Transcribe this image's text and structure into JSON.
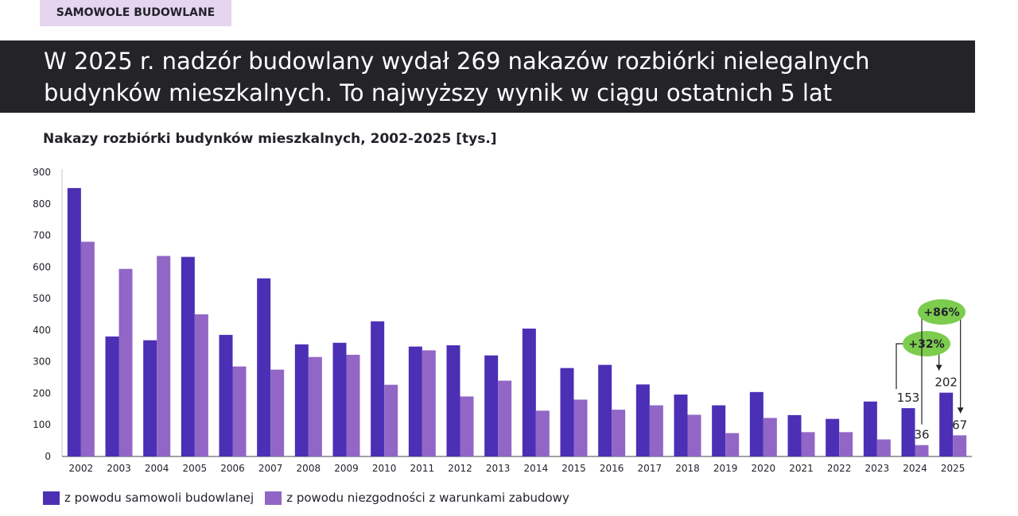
{
  "tag": "SAMOWOLE BUDOWLANE",
  "headline": "W 2025 r. nadzór budowlany wydał 269 nakazów rozbiórki nielegalnych budynków mieszkalnych. To najwyższy wynik w ciągu ostatnich 5 lat",
  "colors": {
    "series1": "#4b2fb5",
    "series2": "#9166c6",
    "badge": "#7ccc4e",
    "banner": "#242428",
    "tag_bg": "#e5d5ef"
  },
  "chart_data": {
    "type": "bar",
    "title": "Nakazy rozbiórki budynków mieszkalnych, 2002-2025 [tys.]",
    "categories": [
      "2002",
      "2003",
      "2004",
      "2005",
      "2006",
      "2007",
      "2008",
      "2009",
      "2010",
      "2011",
      "2012",
      "2013",
      "2014",
      "2015",
      "2016",
      "2017",
      "2018",
      "2019",
      "2020",
      "2021",
      "2022",
      "2023",
      "2024",
      "2025"
    ],
    "series": [
      {
        "name": "z powodu samowoli budowlanej",
        "values": [
          850,
          380,
          368,
          632,
          385,
          564,
          355,
          360,
          428,
          348,
          352,
          320,
          405,
          280,
          290,
          228,
          196,
          162,
          204,
          131,
          119,
          174,
          153,
          202
        ]
      },
      {
        "name": "z powodu niezgodności z warunkami zabudowy",
        "values": [
          680,
          594,
          635,
          450,
          285,
          275,
          315,
          322,
          227,
          336,
          190,
          240,
          145,
          180,
          148,
          162,
          132,
          74,
          122,
          77,
          77,
          54,
          36,
          67
        ]
      }
    ],
    "ylim": [
      0,
      900
    ],
    "yticks": [
      0,
      100,
      200,
      300,
      400,
      500,
      600,
      700,
      800,
      900
    ],
    "grid": false,
    "data_labels": [
      {
        "year": "2024",
        "series": 0,
        "text": "153"
      },
      {
        "year": "2024",
        "series": 1,
        "text": "36"
      },
      {
        "year": "2025",
        "series": 0,
        "text": "202"
      },
      {
        "year": "2025",
        "series": 1,
        "text": "67"
      }
    ],
    "annotations": [
      {
        "text": "+32%",
        "from": "2024",
        "to": "2025",
        "series": 0
      },
      {
        "text": "+86%",
        "from": "2024",
        "to": "2025",
        "series": 1
      }
    ],
    "legend_position": "bottom-left"
  }
}
